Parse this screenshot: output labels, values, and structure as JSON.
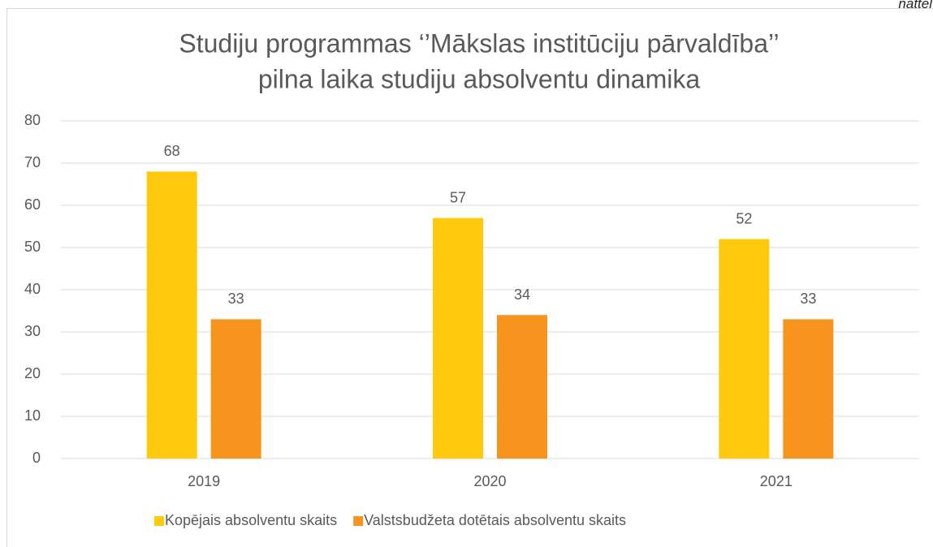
{
  "corner_text": "nattēl",
  "chart_data": {
    "type": "bar",
    "title": [
      "Studiju programmas ‘’Mākslas institūciju pārvaldība’’",
      "pilna laika studiju absolventu dinamika"
    ],
    "categories": [
      "2019",
      "2020",
      "2021"
    ],
    "series": [
      {
        "name": "Kopējais absolventu skaits",
        "color": "#ffc90e",
        "values": [
          68,
          57,
          52
        ]
      },
      {
        "name": "Valstsbudžeta dotētais absolventu skaits",
        "color": "#f7941d",
        "values": [
          33,
          34,
          33
        ]
      }
    ],
    "ylim": [
      0,
      80
    ],
    "yticks": [
      0,
      10,
      20,
      30,
      40,
      50,
      60,
      70,
      80
    ],
    "grid": true,
    "legend": "bottom"
  }
}
